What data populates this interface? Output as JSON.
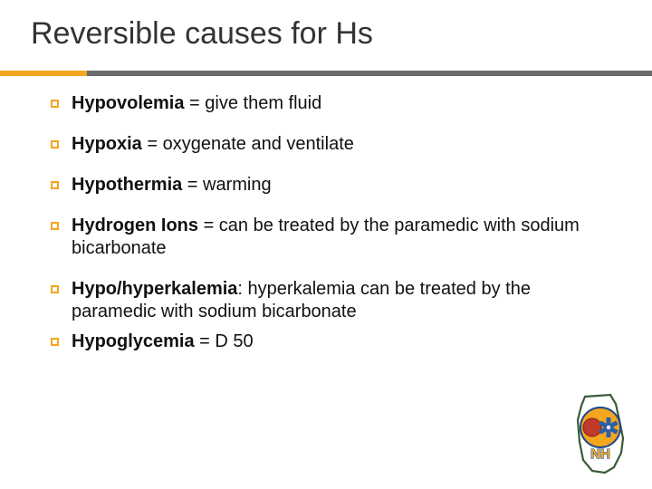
{
  "title": "Reversible causes for Hs",
  "title_color": "#333333",
  "title_fontsize": 34,
  "rule": {
    "left_color": "#f3a61e",
    "right_color": "#6a6a6a",
    "left_width": 96,
    "height": 6
  },
  "body_fontsize": 20,
  "bullet": {
    "size": 9,
    "border_color": "#f3a61e"
  },
  "items": [
    {
      "bold": "Hypovolemia",
      "rest": " = give them fluid",
      "tight": false
    },
    {
      "bold": "Hypoxia",
      "rest": " = oxygenate and ventilate",
      "tight": false
    },
    {
      "bold": "Hypothermia",
      "rest": " = warming",
      "tight": false
    },
    {
      "bold": "Hydrogen Ions",
      "rest": " = can be treated by the paramedic with sodium bicarbonate",
      "tight": false
    },
    {
      "bold": "Hypo/hyperkalemia",
      "rest": ": hyperkalemia can be treated by the paramedic with sodium bicarbonate",
      "tight": true
    },
    {
      "bold": "Hypoglycemia",
      "rest": " = D 50",
      "tight": false
    }
  ],
  "logo": {
    "outline_color": "#3a5a3a",
    "circle_outer": "#f3a61e",
    "circle_stroke": "#1e4a8a",
    "seal_fill": "#c0392b",
    "star_fill": "#2a5fa8",
    "star_center": "#ffffff",
    "nh_text": "NH",
    "nh_color": "#f3a61e",
    "nh_stroke": "#2a5fa8"
  },
  "background_color": "#ffffff"
}
